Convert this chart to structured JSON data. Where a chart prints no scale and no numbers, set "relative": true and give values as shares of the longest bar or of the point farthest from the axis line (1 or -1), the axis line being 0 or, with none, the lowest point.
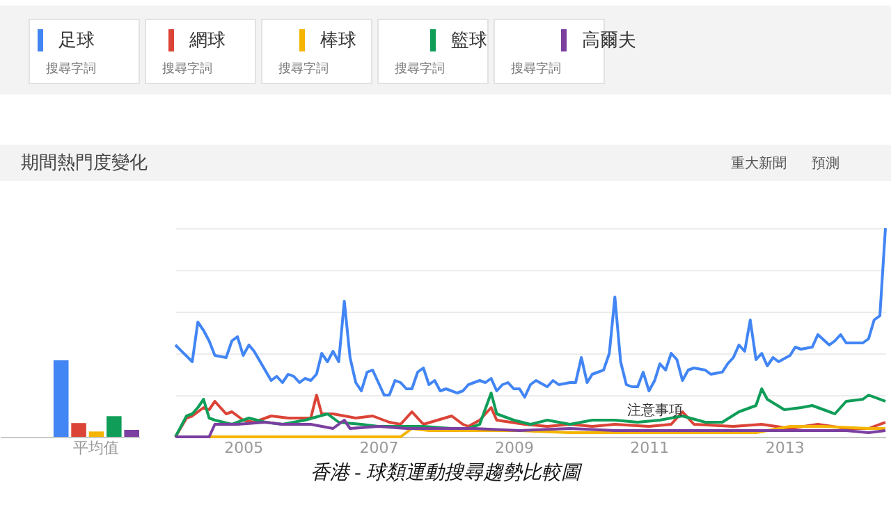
{
  "chart_data": [
    {
      "type": "bar",
      "relative": true,
      "categories": [
        "平均值"
      ],
      "series": [
        {
          "color": "#4285f4",
          "values": [
            1
          ]
        },
        {
          "color": "#db4437",
          "values": [
            0.18
          ]
        },
        {
          "color": "#f4b400",
          "values": [
            0.07
          ]
        },
        {
          "color": "#0f9d58",
          "values": [
            0.27
          ]
        },
        {
          "color": "#7b3fa0",
          "values": [
            0.09
          ]
        }
      ]
    },
    {
      "type": "line",
      "title": "期間熱門度變化",
      "relative": true,
      "grid": "y",
      "legend": "top",
      "xlim": [
        "2004-01",
        "2014-07"
      ],
      "xticks": [
        "2005",
        "2007",
        "2009",
        "2011",
        "2013"
      ],
      "annotations": [
        "搜尋字詞",
        "搜尋字詞",
        "搜尋字詞",
        "搜尋字詞",
        "搜尋字詞",
        "重大新聞",
        "預測",
        "香港 - 球類運動搜尋趨勢比較圖",
        {
          "text": "注意事項",
          "x": "2011-02",
          "y": 0.06
        }
      ],
      "series": [
        {
          "name": "足球",
          "color": "#4285f4",
          "x": [
            "2004-01",
            "2004-04",
            "2004-05",
            "2004-06",
            "2004-07",
            "2004-08",
            "2004-10",
            "2004-11",
            "2004-12",
            "2005-01",
            "2005-02",
            "2005-03",
            "2005-06",
            "2005-07",
            "2005-08",
            "2005-09",
            "2005-10",
            "2005-11",
            "2005-12",
            "2006-01",
            "2006-02",
            "2006-03",
            "2006-04",
            "2006-05",
            "2006-06",
            "2006-07",
            "2006-08",
            "2006-09",
            "2006-10",
            "2006-11",
            "2006-12",
            "2007-01",
            "2007-02",
            "2007-03",
            "2007-04",
            "2007-05",
            "2007-06",
            "2007-07",
            "2007-08",
            "2007-09",
            "2007-10",
            "2007-11",
            "2007-12",
            "2008-01",
            "2008-02",
            "2008-03",
            "2008-04",
            "2008-05",
            "2008-07",
            "2008-08",
            "2008-09",
            "2008-10",
            "2008-11",
            "2008-12",
            "2009-01",
            "2009-02",
            "2009-03",
            "2009-04",
            "2009-05",
            "2009-07",
            "2009-08",
            "2009-09",
            "2009-11",
            "2009-12",
            "2010-01",
            "2010-02",
            "2010-03",
            "2010-04",
            "2010-05",
            "2010-06",
            "2010-07",
            "2010-08",
            "2010-09",
            "2010-10",
            "2010-11",
            "2010-12",
            "2011-01",
            "2011-02",
            "2011-03",
            "2011-04",
            "2011-05",
            "2011-06",
            "2011-07",
            "2011-08",
            "2011-09",
            "2011-11",
            "2011-12",
            "2012-02",
            "2012-03",
            "2012-04",
            "2012-05",
            "2012-06",
            "2012-07",
            "2012-08",
            "2012-09",
            "2012-10",
            "2012-11",
            "2012-12",
            "2013-02",
            "2013-03",
            "2013-04",
            "2013-06",
            "2013-07",
            "2013-09",
            "2013-10",
            "2013-11",
            "2013-12",
            "2014-02",
            "2014-03",
            "2014-04",
            "2014-05",
            "2014-06",
            "2014-07"
          ],
          "values": [
            0.44,
            0.36,
            0.55,
            0.51,
            0.46,
            0.39,
            0.38,
            0.46,
            0.48,
            0.39,
            0.44,
            0.41,
            0.27,
            0.29,
            0.26,
            0.3,
            0.29,
            0.26,
            0.28,
            0.27,
            0.3,
            0.4,
            0.36,
            0.41,
            0.36,
            0.65,
            0.38,
            0.26,
            0.22,
            0.31,
            0.32,
            0.26,
            0.2,
            0.2,
            0.27,
            0.26,
            0.23,
            0.23,
            0.31,
            0.33,
            0.25,
            0.27,
            0.22,
            0.23,
            0.22,
            0.21,
            0.22,
            0.25,
            0.27,
            0.26,
            0.28,
            0.22,
            0.25,
            0.26,
            0.23,
            0.23,
            0.19,
            0.25,
            0.27,
            0.24,
            0.27,
            0.25,
            0.26,
            0.26,
            0.38,
            0.26,
            0.3,
            0.31,
            0.32,
            0.4,
            0.67,
            0.36,
            0.25,
            0.24,
            0.24,
            0.31,
            0.22,
            0.27,
            0.35,
            0.32,
            0.4,
            0.37,
            0.27,
            0.32,
            0.33,
            0.32,
            0.3,
            0.31,
            0.35,
            0.38,
            0.44,
            0.41,
            0.56,
            0.37,
            0.4,
            0.34,
            0.38,
            0.36,
            0.39,
            0.43,
            0.42,
            0.43,
            0.49,
            0.44,
            0.46,
            0.49,
            0.45,
            0.45,
            0.45,
            0.47,
            0.56,
            0.58,
            1
          ]
        },
        {
          "name": "網球",
          "color": "#db4437",
          "x": [
            "2004-01",
            "2004-03",
            "2004-04",
            "2004-06",
            "2004-07",
            "2004-08",
            "2004-10",
            "2004-11",
            "2005-01",
            "2005-03",
            "2005-06",
            "2005-09",
            "2006-01",
            "2006-02",
            "2006-03",
            "2006-05",
            "2006-09",
            "2006-12",
            "2007-03",
            "2007-05",
            "2007-07",
            "2007-09",
            "2008-02",
            "2008-04",
            "2008-05",
            "2008-07",
            "2008-09",
            "2008-10",
            "2009-03",
            "2009-07",
            "2009-11",
            "2010-03",
            "2010-07",
            "2011-01",
            "2011-05",
            "2011-07",
            "2011-09",
            "2012-04",
            "2012-09",
            "2013-02",
            "2013-07",
            "2013-12",
            "2014-04",
            "2014-07"
          ],
          "values": [
            0,
            0.09,
            0.1,
            0.14,
            0.13,
            0.17,
            0.11,
            0.12,
            0.08,
            0.07,
            0.1,
            0.09,
            0.09,
            0.2,
            0.11,
            0.11,
            0.09,
            0.1,
            0.07,
            0.06,
            0.12,
            0.06,
            0.1,
            0.06,
            0.05,
            0.08,
            0.14,
            0.08,
            0.06,
            0.05,
            0.06,
            0.05,
            0.06,
            0.05,
            0.06,
            0.12,
            0.06,
            0.05,
            0.06,
            0.04,
            0.06,
            0.04,
            0.04,
            0.07
          ]
        },
        {
          "name": "棒球",
          "color": "#f4b400",
          "x": [
            "2004-01",
            "2007-05",
            "2007-07",
            "2007-10",
            "2008-02",
            "2008-06",
            "2009-02",
            "2009-11",
            "2010-07",
            "2011-03",
            "2011-12",
            "2012-08",
            "2013-02",
            "2013-08",
            "2014-04",
            "2014-07"
          ],
          "values": [
            0,
            0,
            0.04,
            0.03,
            0.03,
            0.03,
            0.03,
            0.02,
            0.02,
            0.02,
            0.02,
            0.02,
            0.05,
            0.05,
            0.04,
            0.04
          ]
        },
        {
          "name": "籃球",
          "color": "#0f9d58",
          "x": [
            "2004-01",
            "2004-03",
            "2004-04",
            "2004-05",
            "2004-06",
            "2004-07",
            "2004-08",
            "2004-11",
            "2005-02",
            "2005-05",
            "2005-08",
            "2005-12",
            "2006-04",
            "2006-06",
            "2006-10",
            "2007-01",
            "2007-05",
            "2007-09",
            "2008-02",
            "2008-05",
            "2008-07",
            "2008-09",
            "2008-10",
            "2009-01",
            "2009-04",
            "2009-07",
            "2009-11",
            "2010-03",
            "2010-07",
            "2010-11",
            "2011-03",
            "2011-07",
            "2011-11",
            "2012-02",
            "2012-05",
            "2012-08",
            "2012-09",
            "2012-10",
            "2013-01",
            "2013-04",
            "2013-06",
            "2013-09",
            "2013-10",
            "2013-12",
            "2014-03",
            "2014-04",
            "2014-07"
          ],
          "values": [
            0,
            0.1,
            0.11,
            0.14,
            0.18,
            0.09,
            0.08,
            0.06,
            0.09,
            0.07,
            0.06,
            0.08,
            0.11,
            0.07,
            0.06,
            0.05,
            0.05,
            0.05,
            0.04,
            0.04,
            0.06,
            0.21,
            0.11,
            0.08,
            0.06,
            0.08,
            0.06,
            0.08,
            0.08,
            0.07,
            0.08,
            0.1,
            0.07,
            0.07,
            0.12,
            0.15,
            0.23,
            0.18,
            0.13,
            0.14,
            0.15,
            0.12,
            0.11,
            0.17,
            0.18,
            0.2,
            0.17
          ]
        },
        {
          "name": "高爾夫",
          "color": "#7b3fa0",
          "x": [
            "2004-01",
            "2004-07",
            "2004-08",
            "2004-12",
            "2005-05",
            "2005-08",
            "2006-01",
            "2006-05",
            "2006-07",
            "2006-08",
            "2007-01",
            "2007-06",
            "2007-12",
            "2008-06",
            "2009-02",
            "2009-11",
            "2010-07",
            "2011-03",
            "2011-12",
            "2012-08",
            "2013-04",
            "2013-12",
            "2014-04",
            "2014-07"
          ],
          "values": [
            0,
            0,
            0.06,
            0.06,
            0.07,
            0.06,
            0.06,
            0.04,
            0.08,
            0.04,
            0.05,
            0.04,
            0.04,
            0.04,
            0.03,
            0.04,
            0.03,
            0.03,
            0.03,
            0.03,
            0.03,
            0.03,
            0.02,
            0.03
          ]
        }
      ]
    }
  ]
}
